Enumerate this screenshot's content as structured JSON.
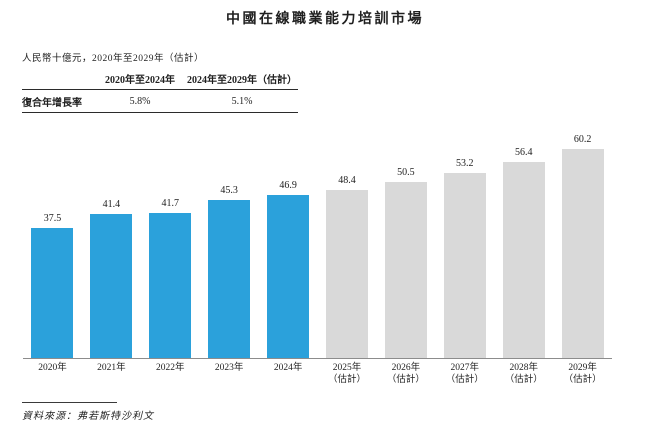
{
  "title": "中國在線職業能力培訓市場",
  "subtitle": "人民幣十億元，2020年至2029年（估計）",
  "cagr_table": {
    "row_label": "復合年增長率",
    "col1_header": "2020年至2024年",
    "col2_header": "2024年至2029年（估計）",
    "col1_value": "5.8%",
    "col2_value": "5.1%"
  },
  "source_note": "資料來源：弗若斯特沙利文",
  "colors": {
    "actual_bar": "#2BA1DB",
    "estimate_bar": "#D9D9D9",
    "axis_line": "#8C8C8C"
  },
  "chart_data": {
    "type": "bar",
    "title": "中國在線職業能力培訓市場",
    "unit_label": "人民幣十億元",
    "xlabel": "",
    "ylabel": "",
    "ylim": [
      0,
      62
    ],
    "grid": false,
    "legend": "none",
    "value_labels": "above bars, one decimal",
    "categories": [
      "2020年",
      "2021年",
      "2022年",
      "2023年",
      "2024年",
      "2025年（估計）",
      "2026年（估計）",
      "2027年（估計）",
      "2028年（估計）",
      "2029年（估計）"
    ],
    "values": [
      37.5,
      41.4,
      41.7,
      45.3,
      46.9,
      48.4,
      50.5,
      53.2,
      56.4,
      60.2
    ],
    "bars": [
      {
        "label": "2020年",
        "sublabel": "",
        "value": 37.5,
        "kind": "actual"
      },
      {
        "label": "2021年",
        "sublabel": "",
        "value": 41.4,
        "kind": "actual"
      },
      {
        "label": "2022年",
        "sublabel": "",
        "value": 41.7,
        "kind": "actual"
      },
      {
        "label": "2023年",
        "sublabel": "",
        "value": 45.3,
        "kind": "actual"
      },
      {
        "label": "2024年",
        "sublabel": "",
        "value": 46.9,
        "kind": "actual"
      },
      {
        "label": "2025年",
        "sublabel": "（估計）",
        "value": 48.4,
        "kind": "estimate"
      },
      {
        "label": "2026年",
        "sublabel": "（估計）",
        "value": 50.5,
        "kind": "estimate"
      },
      {
        "label": "2027年",
        "sublabel": "（估計）",
        "value": 53.2,
        "kind": "estimate"
      },
      {
        "label": "2028年",
        "sublabel": "（估計）",
        "value": 56.4,
        "kind": "estimate"
      },
      {
        "label": "2029年",
        "sublabel": "（估計）",
        "value": 60.2,
        "kind": "estimate"
      }
    ]
  }
}
